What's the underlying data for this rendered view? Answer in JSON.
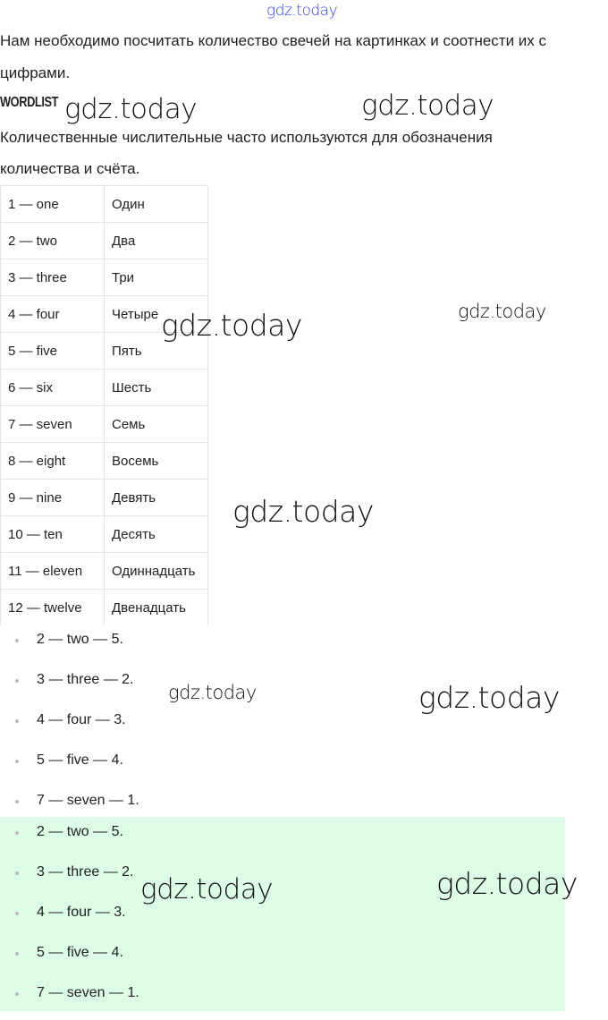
{
  "watermark": "gdz.today",
  "intro": [
    "Нам необходимо посчитать количество свечей на картинках и соотнести их с",
    "цифрами."
  ],
  "wordlist_heading": "WORDLIST",
  "description": [
    "Количественные числительные часто используются для обозначения",
    "количества и счёта."
  ],
  "table": [
    [
      "1 — one",
      "Один"
    ],
    [
      "2 — two",
      "Два"
    ],
    [
      "3 — three",
      "Три"
    ],
    [
      "4 — four",
      "Четыре"
    ],
    [
      "5 — five",
      "Пять"
    ],
    [
      "6 — six",
      "Шесть"
    ],
    [
      "7 — seven",
      "Семь"
    ],
    [
      "8 — eight",
      "Восемь"
    ],
    [
      "9 — nine",
      "Девять"
    ],
    [
      "10 — ten",
      "Десять"
    ],
    [
      "11 — eleven",
      "Одиннадцать"
    ],
    [
      "12 — twelve",
      "Двенадцать"
    ]
  ],
  "answers": [
    "2 — two — 5.",
    "3 — three — 2.",
    "4 — four — 3.",
    "5 — five — 4.",
    "7 — seven — 1."
  ],
  "answers_highlighted": [
    "2 — two — 5.",
    "3 — three — 2.",
    "4 — four — 3.",
    "5 — five — 4.",
    "7 — seven — 1."
  ],
  "colors": {
    "highlight": "#dcfce6",
    "watermark_top": "#3344ee",
    "border": "#e4e4e4"
  }
}
